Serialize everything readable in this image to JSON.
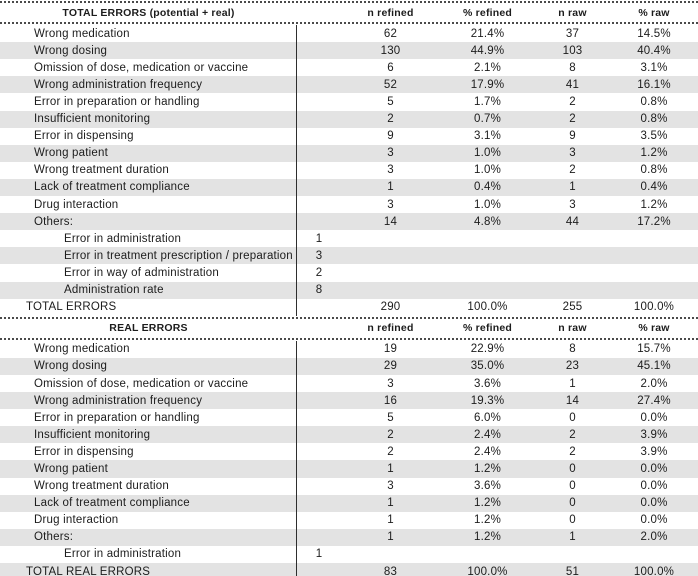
{
  "colors": {
    "row_shade": "#e3e3e3",
    "rule": "#2e2e2e",
    "dotted": "#4a4a4a",
    "text": "#1c1c1c"
  },
  "sections": [
    {
      "title": "TOTAL ERRORS (potential + real)",
      "columns": [
        "n refined",
        "% refined",
        "n raw",
        "% raw"
      ],
      "rows": [
        {
          "type": "normal",
          "label": "Wrong medication",
          "sub": "",
          "n_refined": "62",
          "pct_refined": "21.4%",
          "n_raw": "37",
          "pct_raw": "14.5%"
        },
        {
          "type": "normal",
          "label": "Wrong dosing",
          "sub": "",
          "n_refined": "130",
          "pct_refined": "44.9%",
          "n_raw": "103",
          "pct_raw": "40.4%"
        },
        {
          "type": "normal",
          "label": "Omission of dose, medication or vaccine",
          "sub": "",
          "n_refined": "6",
          "pct_refined": "2.1%",
          "n_raw": "8",
          "pct_raw": "3.1%"
        },
        {
          "type": "normal",
          "label": "Wrong administration frequency",
          "sub": "",
          "n_refined": "52",
          "pct_refined": "17.9%",
          "n_raw": "41",
          "pct_raw": "16.1%"
        },
        {
          "type": "normal",
          "label": "Error in preparation or handling",
          "sub": "",
          "n_refined": "5",
          "pct_refined": "1.7%",
          "n_raw": "2",
          "pct_raw": "0.8%"
        },
        {
          "type": "normal",
          "label": "Insufficient monitoring",
          "sub": "",
          "n_refined": "2",
          "pct_refined": "0.7%",
          "n_raw": "2",
          "pct_raw": "0.8%"
        },
        {
          "type": "normal",
          "label": "Error in dispensing",
          "sub": "",
          "n_refined": "9",
          "pct_refined": "3.1%",
          "n_raw": "9",
          "pct_raw": "3.5%"
        },
        {
          "type": "normal",
          "label": "Wrong patient",
          "sub": "",
          "n_refined": "3",
          "pct_refined": "1.0%",
          "n_raw": "3",
          "pct_raw": "1.2%"
        },
        {
          "type": "normal",
          "label": "Wrong treatment duration",
          "sub": "",
          "n_refined": "3",
          "pct_refined": "1.0%",
          "n_raw": "2",
          "pct_raw": "0.8%"
        },
        {
          "type": "normal",
          "label": "Lack of treatment compliance",
          "sub": "",
          "n_refined": "1",
          "pct_refined": "0.4%",
          "n_raw": "1",
          "pct_raw": "0.4%"
        },
        {
          "type": "normal",
          "label": "Drug interaction",
          "sub": "",
          "n_refined": "3",
          "pct_refined": "1.0%",
          "n_raw": "3",
          "pct_raw": "1.2%"
        },
        {
          "type": "normal",
          "label": "Others:",
          "sub": "",
          "n_refined": "14",
          "pct_refined": "4.8%",
          "n_raw": "44",
          "pct_raw": "17.2%"
        },
        {
          "type": "sub",
          "label": "Error in administration",
          "sub": "1",
          "n_refined": "",
          "pct_refined": "",
          "n_raw": "",
          "pct_raw": ""
        },
        {
          "type": "sub",
          "label": "Error in treatment prescription / preparation",
          "sub": "3",
          "n_refined": "",
          "pct_refined": "",
          "n_raw": "",
          "pct_raw": ""
        },
        {
          "type": "sub",
          "label": "Error in way of administration",
          "sub": "2",
          "n_refined": "",
          "pct_refined": "",
          "n_raw": "",
          "pct_raw": ""
        },
        {
          "type": "sub",
          "label": "Administration rate",
          "sub": "8",
          "n_refined": "",
          "pct_refined": "",
          "n_raw": "",
          "pct_raw": ""
        },
        {
          "type": "total",
          "label": "TOTAL ERRORS",
          "sub": "",
          "n_refined": "290",
          "pct_refined": "100.0%",
          "n_raw": "255",
          "pct_raw": "100.0%"
        }
      ]
    },
    {
      "title": "REAL ERRORS",
      "columns": [
        "n refined",
        "% refined",
        "n raw",
        "% raw"
      ],
      "rows": [
        {
          "type": "normal",
          "label": "Wrong medication",
          "sub": "",
          "n_refined": "19",
          "pct_refined": "22.9%",
          "n_raw": "8",
          "pct_raw": "15.7%"
        },
        {
          "type": "normal",
          "label": "Wrong dosing",
          "sub": "",
          "n_refined": "29",
          "pct_refined": "35.0%",
          "n_raw": "23",
          "pct_raw": "45.1%"
        },
        {
          "type": "normal",
          "label": "Omission of dose, medication or vaccine",
          "sub": "",
          "n_refined": "3",
          "pct_refined": "3.6%",
          "n_raw": "1",
          "pct_raw": "2.0%"
        },
        {
          "type": "normal",
          "label": "Wrong administration frequency",
          "sub": "",
          "n_refined": "16",
          "pct_refined": "19.3%",
          "n_raw": "14",
          "pct_raw": "27.4%"
        },
        {
          "type": "normal",
          "label": "Error in preparation or handling",
          "sub": "",
          "n_refined": "5",
          "pct_refined": "6.0%",
          "n_raw": "0",
          "pct_raw": "0.0%"
        },
        {
          "type": "normal",
          "label": "Insufficient monitoring",
          "sub": "",
          "n_refined": "2",
          "pct_refined": "2.4%",
          "n_raw": "2",
          "pct_raw": "3.9%"
        },
        {
          "type": "normal",
          "label": "Error in dispensing",
          "sub": "",
          "n_refined": "2",
          "pct_refined": "2.4%",
          "n_raw": "2",
          "pct_raw": "3.9%"
        },
        {
          "type": "normal",
          "label": "Wrong patient",
          "sub": "",
          "n_refined": "1",
          "pct_refined": "1.2%",
          "n_raw": "0",
          "pct_raw": "0.0%"
        },
        {
          "type": "normal",
          "label": "Wrong treatment duration",
          "sub": "",
          "n_refined": "3",
          "pct_refined": "3.6%",
          "n_raw": "0",
          "pct_raw": "0.0%"
        },
        {
          "type": "normal",
          "label": "Lack of treatment compliance",
          "sub": "",
          "n_refined": "1",
          "pct_refined": "1.2%",
          "n_raw": "0",
          "pct_raw": "0.0%"
        },
        {
          "type": "normal",
          "label": "Drug interaction",
          "sub": "",
          "n_refined": "1",
          "pct_refined": "1.2%",
          "n_raw": "0",
          "pct_raw": "0.0%"
        },
        {
          "type": "normal",
          "label": "Others:",
          "sub": "",
          "n_refined": "1",
          "pct_refined": "1.2%",
          "n_raw": "1",
          "pct_raw": "2.0%"
        },
        {
          "type": "sub",
          "label": "Error in administration",
          "sub": "1",
          "n_refined": "",
          "pct_refined": "",
          "n_raw": "",
          "pct_raw": ""
        },
        {
          "type": "total",
          "label": "TOTAL REAL ERRORS",
          "sub": "",
          "n_refined": "83",
          "pct_refined": "100.0%",
          "n_raw": "51",
          "pct_raw": "100.0%"
        }
      ]
    }
  ]
}
